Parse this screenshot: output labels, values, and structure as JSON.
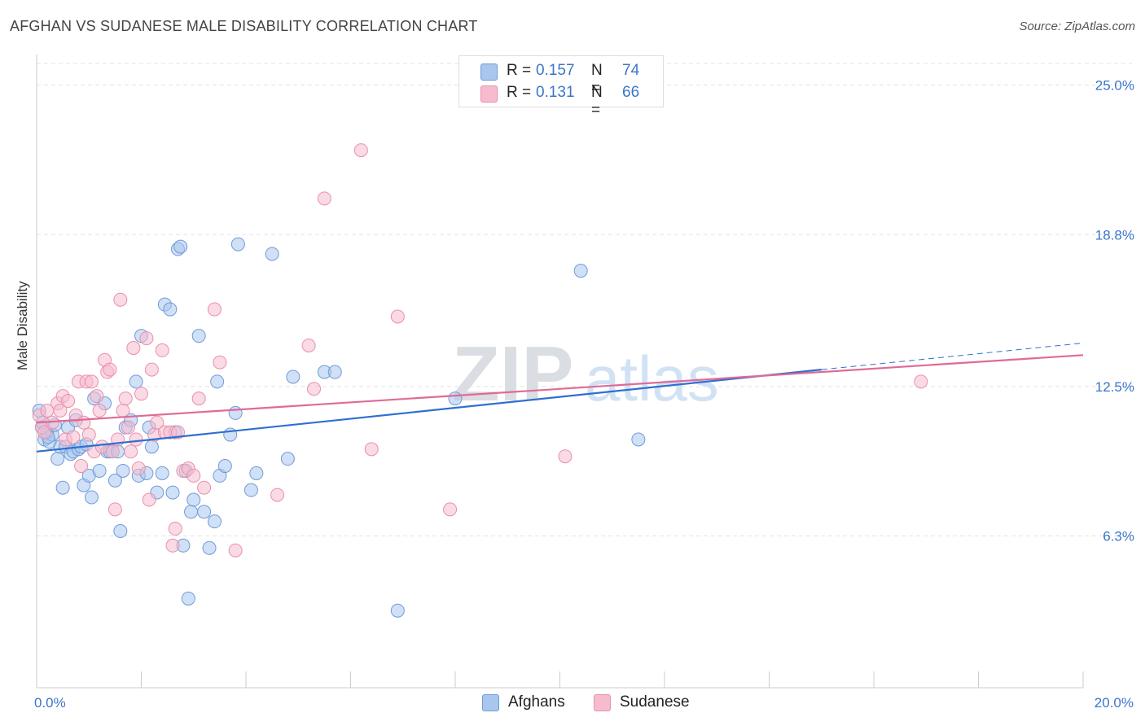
{
  "header": {
    "title": "AFGHAN VS SUDANESE MALE DISABILITY CORRELATION CHART",
    "source": "Source: ZipAtlas.com"
  },
  "watermark": {
    "zip": "ZIP",
    "atlas": "atlas"
  },
  "stats": [
    {
      "r_label": "R =",
      "r_value": "0.157",
      "n_label": "N =",
      "n_value": "74",
      "color": "#a9c6ee",
      "border": "#6f9bd8"
    },
    {
      "r_label": "R =",
      "r_value": "0.131",
      "n_label": "N =",
      "n_value": "66",
      "color": "#f6bccd",
      "border": "#ea8fab"
    }
  ],
  "legend": [
    {
      "label": "Afghans",
      "color": "#a9c6ee",
      "border": "#6f9bd8"
    },
    {
      "label": "Sudanese",
      "color": "#f6bccd",
      "border": "#ea8fab"
    }
  ],
  "chart_data": {
    "type": "scatter",
    "title": "AFGHAN VS SUDANESE MALE DISABILITY CORRELATION CHART",
    "ylabel": "Male Disability",
    "xlabel": "",
    "xlim": [
      0,
      20
    ],
    "ylim": [
      0,
      25.9
    ],
    "x_tick_labels": [
      {
        "value": 0,
        "label": "0.0%"
      },
      {
        "value": 20,
        "label": "20.0%"
      }
    ],
    "y_tick_labels": [
      {
        "value": 6.3,
        "label": "6.3%"
      },
      {
        "value": 12.5,
        "label": "12.5%"
      },
      {
        "value": 18.8,
        "label": "18.8%"
      },
      {
        "value": 25.0,
        "label": "25.0%"
      }
    ],
    "grid": true,
    "legend_position": "bottom-center",
    "series": [
      {
        "name": "Afghans",
        "color": "#6f9bd8",
        "fill": "#a9c6ee",
        "trend": {
          "x0": 0,
          "y0": 9.8,
          "x1": 15.0,
          "y1": 13.2,
          "dashed_to_x": 20,
          "dashed_to_y": 14.3
        },
        "points": [
          [
            0.1,
            10.8
          ],
          [
            0.15,
            10.3
          ],
          [
            0.2,
            10.6
          ],
          [
            0.25,
            10.2
          ],
          [
            0.3,
            10.5
          ],
          [
            0.35,
            10.9
          ],
          [
            0.4,
            9.5
          ],
          [
            0.45,
            10.0
          ],
          [
            0.5,
            8.3
          ],
          [
            0.55,
            10.0
          ],
          [
            0.6,
            10.8
          ],
          [
            0.65,
            9.7
          ],
          [
            0.7,
            9.8
          ],
          [
            0.75,
            11.1
          ],
          [
            0.8,
            9.9
          ],
          [
            0.85,
            10.0
          ],
          [
            0.9,
            8.4
          ],
          [
            0.95,
            10.1
          ],
          [
            1.0,
            8.8
          ],
          [
            1.05,
            7.9
          ],
          [
            1.1,
            12.0
          ],
          [
            1.2,
            9.0
          ],
          [
            1.3,
            11.8
          ],
          [
            1.35,
            9.8
          ],
          [
            1.4,
            9.8
          ],
          [
            1.5,
            8.6
          ],
          [
            1.55,
            9.8
          ],
          [
            1.6,
            6.5
          ],
          [
            1.65,
            9.0
          ],
          [
            1.7,
            10.8
          ],
          [
            1.8,
            11.1
          ],
          [
            1.9,
            12.7
          ],
          [
            1.95,
            8.8
          ],
          [
            2.0,
            14.6
          ],
          [
            2.1,
            8.9
          ],
          [
            2.15,
            10.8
          ],
          [
            2.2,
            10.0
          ],
          [
            2.3,
            8.1
          ],
          [
            2.4,
            8.9
          ],
          [
            2.45,
            15.9
          ],
          [
            2.55,
            15.7
          ],
          [
            2.6,
            8.1
          ],
          [
            2.65,
            10.6
          ],
          [
            2.7,
            18.2
          ],
          [
            2.75,
            18.3
          ],
          [
            2.8,
            5.9
          ],
          [
            2.85,
            9.0
          ],
          [
            2.9,
            3.7
          ],
          [
            2.95,
            7.3
          ],
          [
            3.0,
            7.8
          ],
          [
            3.1,
            14.6
          ],
          [
            3.2,
            7.3
          ],
          [
            3.3,
            5.8
          ],
          [
            3.4,
            6.9
          ],
          [
            3.45,
            12.7
          ],
          [
            3.5,
            8.8
          ],
          [
            3.6,
            9.2
          ],
          [
            3.7,
            10.5
          ],
          [
            3.8,
            11.4
          ],
          [
            3.85,
            18.4
          ],
          [
            4.1,
            8.2
          ],
          [
            4.2,
            8.9
          ],
          [
            4.5,
            18.0
          ],
          [
            4.8,
            9.5
          ],
          [
            4.9,
            12.9
          ],
          [
            5.5,
            13.1
          ],
          [
            5.7,
            13.1
          ],
          [
            6.9,
            3.2
          ],
          [
            8.0,
            12.0
          ],
          [
            10.4,
            17.3
          ],
          [
            11.5,
            10.3
          ],
          [
            0.05,
            11.5
          ],
          [
            0.12,
            11.0
          ],
          [
            0.22,
            10.4
          ]
        ]
      },
      {
        "name": "Sudanese",
        "color": "#ea8fab",
        "fill": "#f6bccd",
        "trend": {
          "x0": 0,
          "y0": 11.0,
          "x1": 20,
          "y1": 13.8
        },
        "points": [
          [
            0.05,
            11.3
          ],
          [
            0.1,
            10.8
          ],
          [
            0.15,
            10.6
          ],
          [
            0.2,
            11.5
          ],
          [
            0.3,
            11.0
          ],
          [
            0.4,
            11.8
          ],
          [
            0.45,
            11.5
          ],
          [
            0.5,
            12.1
          ],
          [
            0.55,
            10.3
          ],
          [
            0.6,
            11.9
          ],
          [
            0.7,
            10.4
          ],
          [
            0.75,
            11.3
          ],
          [
            0.8,
            12.7
          ],
          [
            0.85,
            9.2
          ],
          [
            0.9,
            11.0
          ],
          [
            0.95,
            12.7
          ],
          [
            1.0,
            10.5
          ],
          [
            1.05,
            12.7
          ],
          [
            1.1,
            9.8
          ],
          [
            1.15,
            12.1
          ],
          [
            1.2,
            11.5
          ],
          [
            1.25,
            10.0
          ],
          [
            1.3,
            13.6
          ],
          [
            1.35,
            13.1
          ],
          [
            1.4,
            13.2
          ],
          [
            1.45,
            9.8
          ],
          [
            1.5,
            7.4
          ],
          [
            1.55,
            10.3
          ],
          [
            1.6,
            16.1
          ],
          [
            1.65,
            11.5
          ],
          [
            1.7,
            12.0
          ],
          [
            1.75,
            10.8
          ],
          [
            1.8,
            9.8
          ],
          [
            1.85,
            14.1
          ],
          [
            1.9,
            10.3
          ],
          [
            1.95,
            9.1
          ],
          [
            2.0,
            12.2
          ],
          [
            2.1,
            14.5
          ],
          [
            2.15,
            7.8
          ],
          [
            2.2,
            13.2
          ],
          [
            2.25,
            10.5
          ],
          [
            2.3,
            11.0
          ],
          [
            2.4,
            14.0
          ],
          [
            2.45,
            10.6
          ],
          [
            2.55,
            10.6
          ],
          [
            2.6,
            5.9
          ],
          [
            2.65,
            6.6
          ],
          [
            2.7,
            10.6
          ],
          [
            2.8,
            9.0
          ],
          [
            2.9,
            9.1
          ],
          [
            3.0,
            8.8
          ],
          [
            3.1,
            12.0
          ],
          [
            3.2,
            8.3
          ],
          [
            3.4,
            15.7
          ],
          [
            3.5,
            13.5
          ],
          [
            3.8,
            5.7
          ],
          [
            4.6,
            8.0
          ],
          [
            5.2,
            14.2
          ],
          [
            5.3,
            12.4
          ],
          [
            5.5,
            20.3
          ],
          [
            6.2,
            22.3
          ],
          [
            6.4,
            9.9
          ],
          [
            6.9,
            15.4
          ],
          [
            7.9,
            7.4
          ],
          [
            10.1,
            9.6
          ],
          [
            16.9,
            12.7
          ]
        ]
      }
    ]
  }
}
